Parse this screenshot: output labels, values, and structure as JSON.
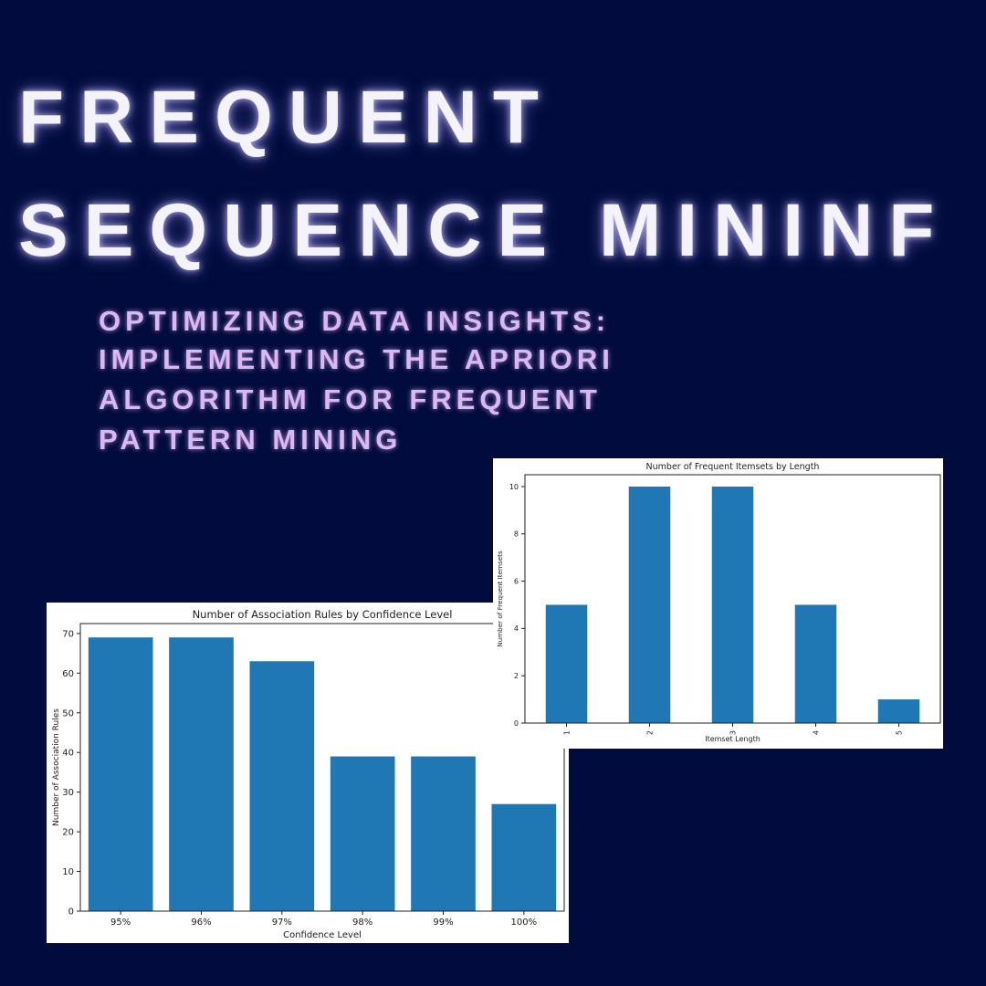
{
  "header": {
    "title": [
      "FREQUENT",
      "SEQUENCE MININF"
    ],
    "subtitle": [
      "OPTIMIZING DATA INSIGHTS:",
      "IMPLEMENTING THE APRIORI",
      "ALGORITHM FOR FREQUENT",
      "PATTERN MINING"
    ]
  },
  "chart_data": [
    {
      "type": "bar",
      "title": "Number of Association Rules by Confidence Level",
      "categories": [
        "95%",
        "96%",
        "97%",
        "98%",
        "99%",
        "100%"
      ],
      "values": [
        69,
        69,
        63,
        39,
        39,
        27
      ],
      "color": "#1f77b4",
      "x_label": "Confidence Level",
      "y_label": "Number of Association Rules",
      "ylim": [
        0,
        72.5
      ],
      "yticks": [
        0,
        10,
        20,
        30,
        40,
        50,
        60,
        70
      ]
    },
    {
      "type": "bar",
      "title": "Number of Frequent Itemsets by Length",
      "categories": [
        "1",
        "2",
        "3",
        "4",
        "5"
      ],
      "values": [
        5,
        10,
        10,
        5,
        1
      ],
      "color": "#1f77b4",
      "x_label": "Itemset Length",
      "y_label": "Number of Frequent Itemsets",
      "ylim": [
        0,
        10.5
      ],
      "yticks": [
        0,
        2,
        4,
        6,
        8,
        10
      ]
    }
  ]
}
